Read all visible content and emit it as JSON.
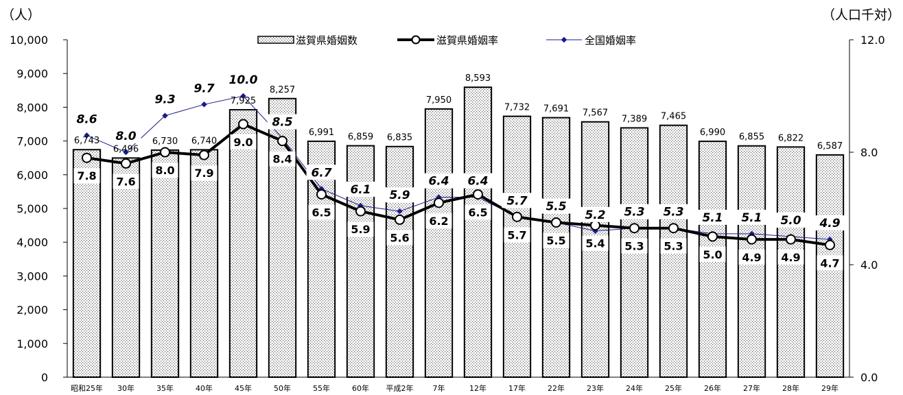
{
  "chart_data": {
    "type": "bar",
    "left_axis_label": "（人）",
    "right_axis_label": "（人口千対）",
    "categories": [
      "昭和25年",
      "30年",
      "35年",
      "40年",
      "45年",
      "50年",
      "55年",
      "60年",
      "平成2年",
      "7年",
      "12年",
      "17年",
      "22年",
      "23年",
      "24年",
      "25年",
      "26年",
      "27年",
      "28年",
      "29年"
    ],
    "y_left": {
      "min": 0,
      "max": 10000,
      "ticks": [
        "0",
        "1,000",
        "2,000",
        "3,000",
        "4,000",
        "5,000",
        "6,000",
        "7,000",
        "8,000",
        "9,000",
        "10,000"
      ]
    },
    "y_right": {
      "min": 0,
      "max": 12,
      "ticks": [
        "0.0",
        "4.0",
        "8.0",
        "12.0"
      ]
    },
    "legend": {
      "bars": "滋賀県婚姻数",
      "shiga_rate": "滋賀県婚姻率",
      "national_rate": "全国婚姻率"
    },
    "series": [
      {
        "name": "滋賀県婚姻数",
        "type": "bar",
        "values": [
          6743,
          6496,
          6730,
          6740,
          7925,
          8257,
          6991,
          6859,
          6835,
          7950,
          8593,
          7732,
          7691,
          7567,
          7389,
          7465,
          6990,
          6855,
          6822,
          6587
        ],
        "labels": [
          "6,743",
          "6,496",
          "6,730",
          "6,740",
          "7,925",
          "8,257",
          "6,991",
          "6,859",
          "6,835",
          "7,950",
          "8,593",
          "7,732",
          "7,691",
          "7,567",
          "7,389",
          "7,465",
          "6,990",
          "6,855",
          "6,822",
          "6,587"
        ]
      },
      {
        "name": "滋賀県婚姻率",
        "type": "line",
        "values": [
          7.8,
          7.6,
          8.0,
          7.9,
          9.0,
          8.4,
          6.5,
          5.9,
          5.6,
          6.2,
          6.5,
          5.7,
          5.5,
          5.4,
          5.3,
          5.3,
          5.0,
          4.9,
          4.9,
          4.7
        ],
        "labels": [
          "7.8",
          "7.6",
          "8.0",
          "7.9",
          "9.0",
          "8.4",
          "6.5",
          "5.9",
          "5.6",
          "6.2",
          "6.5",
          "5.7",
          "5.5",
          "5.4",
          "5.3",
          "5.3",
          "5.0",
          "4.9",
          "4.9",
          "4.7"
        ]
      },
      {
        "name": "全国婚姻率",
        "type": "line",
        "values": [
          8.6,
          8.0,
          9.3,
          9.7,
          10.0,
          8.5,
          6.7,
          6.1,
          5.9,
          6.4,
          6.4,
          5.7,
          5.5,
          5.2,
          5.3,
          5.3,
          5.1,
          5.1,
          5.0,
          4.9
        ],
        "labels": [
          "8.6",
          "8.0",
          "9.3",
          "9.7",
          "10.0",
          "8.5",
          "6.7",
          "6.1",
          "5.9",
          "6.4",
          "6.4",
          "5.7",
          "5.5",
          "5.2",
          "5.3",
          "5.3",
          "5.1",
          "5.1",
          "5.0",
          "4.9"
        ]
      }
    ],
    "colors": {
      "bar_fill": "#ffffff",
      "bar_dots": "#555555",
      "bar_stroke": "#000000",
      "shiga_line": "#000000",
      "national_line": "#1a1a8c"
    }
  }
}
